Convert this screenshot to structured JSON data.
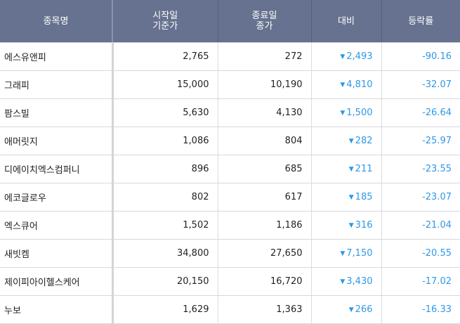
{
  "colors": {
    "header_bg": "#66728f",
    "header_text": "#ffffff",
    "down": "#2f98e6",
    "text": "#222222"
  },
  "header": {
    "name": "종목명",
    "start_price": [
      "시작일",
      "기준가"
    ],
    "end_price": [
      "종료일",
      "종가"
    ],
    "diff": "대비",
    "rate": "등락률"
  },
  "rows": [
    {
      "name": "에스유앤피",
      "start": "2,765",
      "end": "272",
      "diff_icon": "down-triangle-icon",
      "diff": "2,493",
      "rate": "-90.16"
    },
    {
      "name": "그래피",
      "start": "15,000",
      "end": "10,190",
      "diff_icon": "down-triangle-icon",
      "diff": "4,810",
      "rate": "-32.07"
    },
    {
      "name": "팜스빌",
      "start": "5,630",
      "end": "4,130",
      "diff_icon": "down-triangle-icon",
      "diff": "1,500",
      "rate": "-26.64"
    },
    {
      "name": "애머릿지",
      "start": "1,086",
      "end": "804",
      "diff_icon": "down-triangle-icon",
      "diff": "282",
      "rate": "-25.97"
    },
    {
      "name": "디에이치엑스컴퍼니",
      "start": "896",
      "end": "685",
      "diff_icon": "down-triangle-icon",
      "diff": "211",
      "rate": "-23.55"
    },
    {
      "name": "에코글로우",
      "start": "802",
      "end": "617",
      "diff_icon": "down-triangle-icon",
      "diff": "185",
      "rate": "-23.07"
    },
    {
      "name": "엑스큐어",
      "start": "1,502",
      "end": "1,186",
      "diff_icon": "down-triangle-icon",
      "diff": "316",
      "rate": "-21.04"
    },
    {
      "name": "새빗켐",
      "start": "34,800",
      "end": "27,650",
      "diff_icon": "down-triangle-icon",
      "diff": "7,150",
      "rate": "-20.55"
    },
    {
      "name": "제이피아이헬스케어",
      "start": "20,150",
      "end": "16,720",
      "diff_icon": "down-triangle-icon",
      "diff": "3,430",
      "rate": "-17.02"
    },
    {
      "name": "누보",
      "start": "1,629",
      "end": "1,363",
      "diff_icon": "down-triangle-icon",
      "diff": "266",
      "rate": "-16.33"
    }
  ],
  "icons": {
    "down_triangle_glyph": "▼"
  }
}
